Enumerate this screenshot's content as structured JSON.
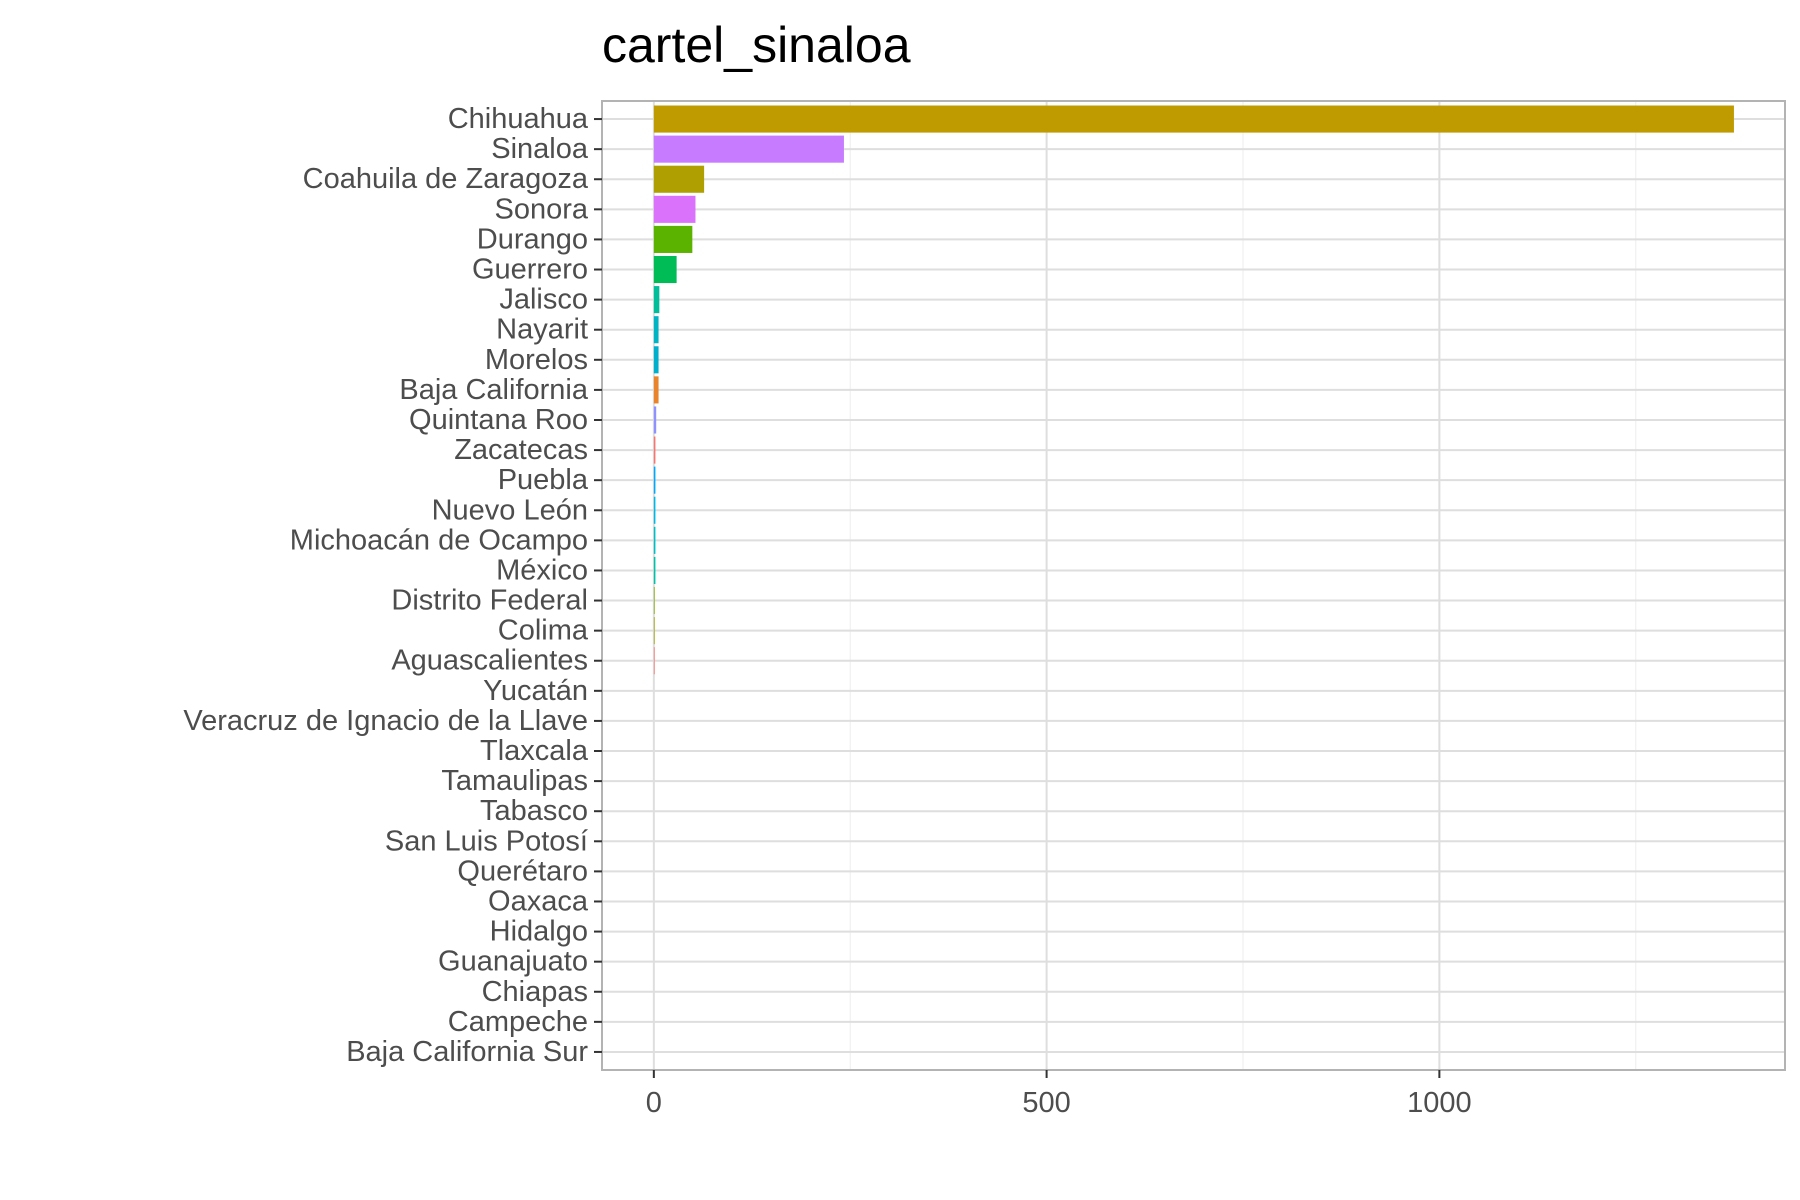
{
  "chart_data": {
    "type": "bar",
    "orientation": "horizontal",
    "title": "cartel_sinaloa",
    "xlabel": "",
    "ylabel": "",
    "xlim": [
      -66,
      1440
    ],
    "x_ticks": [
      0,
      500,
      1000
    ],
    "x_minor_ticks": [
      250,
      750,
      1250
    ],
    "grid": true,
    "legend": "none",
    "categories": [
      "Chihuahua",
      "Sinaloa",
      "Coahuila de Zaragoza",
      "Sonora",
      "Durango",
      "Guerrero",
      "Jalisco",
      "Nayarit",
      "Morelos",
      "Baja California",
      "Quintana Roo",
      "Zacatecas",
      "Puebla",
      "Nuevo León",
      "Michoacán de Ocampo",
      "México",
      "Distrito Federal",
      "Colima",
      "Aguascalientes",
      "Yucatán",
      "Veracruz de Ignacio de la Llave",
      "Tlaxcala",
      "Tamaulipas",
      "Tabasco",
      "San Luis Potosí",
      "Querétaro",
      "Oaxaca",
      "Hidalgo",
      "Guanajuato",
      "Chiapas",
      "Campeche",
      "Baja California Sur"
    ],
    "values": [
      1375,
      242,
      64,
      53,
      49,
      29,
      7,
      6,
      6,
      6,
      3,
      2,
      2,
      2,
      2,
      2,
      1,
      1,
      1,
      0,
      0,
      0,
      0,
      0,
      0,
      0,
      0,
      0,
      0,
      0,
      0,
      0
    ],
    "colors": [
      "#BF9B00",
      "#C77CFF",
      "#B09F00",
      "#DA72FB",
      "#5BB300",
      "#00BC56",
      "#00BE9A",
      "#00B4C4",
      "#00AFCB",
      "#E9842C",
      "#8F91FF",
      "#F8766D",
      "#00A9FF",
      "#00B8E5",
      "#00BFC4",
      "#00C1A9",
      "#82AD00",
      "#9EA700",
      "#F8766D",
      "#FF61C3",
      "#FE6E8A",
      "#FB61D7",
      "#E36EF6",
      "#C77CFF",
      "#8F91FF",
      "#619CFF",
      "#00B0F6",
      "#00BD5C",
      "#00BA38",
      "#7CAE00",
      "#CD9600",
      "#E58700"
    ]
  }
}
